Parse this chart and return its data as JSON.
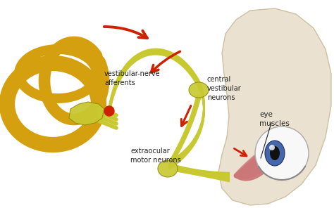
{
  "background_color": "#ffffff",
  "labels": {
    "vestibular_nerve": "vestibular-nerve\nafferents",
    "central_vestibular": "central\nvestibular\nneurons",
    "extraocular": "extraocular\nmotor neurons",
    "eye_muscles": "eye\nmuscles"
  },
  "arrow_color": "#cc2200",
  "nerve_color": "#c8c830",
  "inner_ear_color": "#d4a010",
  "head_color": "#e8dcc8",
  "head_edge_color": "#c8b898",
  "eye_white": "#f0f0f0",
  "muscle_color": "#cc7777",
  "text_color": "#222222",
  "label_fontsize": 7.0,
  "fig_width": 4.74,
  "fig_height": 2.96,
  "dpi": 100
}
